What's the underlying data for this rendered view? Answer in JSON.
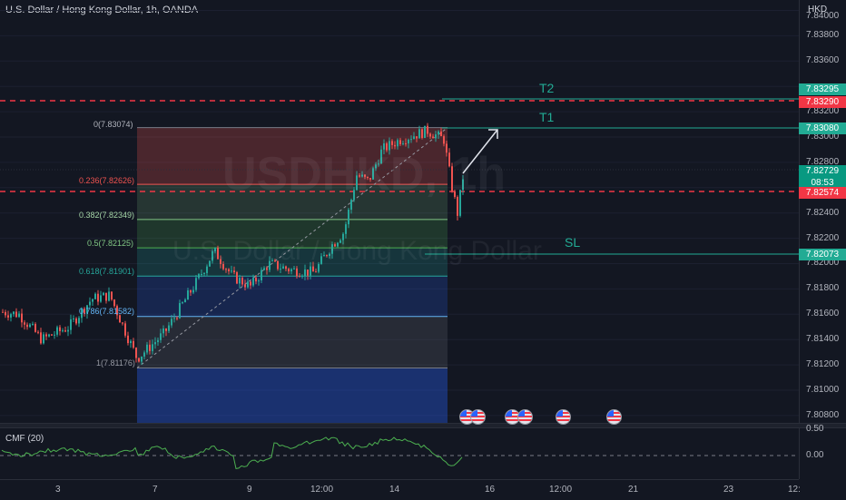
{
  "header": {
    "title": "U.S. Dollar / Hong Kong Dollar, 1h, OANDA"
  },
  "watermark": {
    "symbol": "USDHKD, 1h",
    "name": "U.S. Dollar / Hong Kong Dollar"
  },
  "price_axis": {
    "currency": "HKD",
    "labels": [
      "7.84000",
      "7.83800",
      "7.83600",
      "7.83200",
      "7.83000",
      "7.82800",
      "7.82400",
      "7.82200",
      "7.82000",
      "7.81800",
      "7.81600",
      "7.81400",
      "7.81200",
      "7.81000",
      "7.80800"
    ],
    "tags": {
      "t2": "7.83295",
      "upper_red": "7.83290",
      "t1": "7.83080",
      "last_price": "7.82729",
      "countdown": "08:53",
      "lower_red": "7.82574",
      "sl": "7.82073"
    }
  },
  "time_axis": {
    "labels": [
      "3",
      "7",
      "9",
      "12:00",
      "14",
      "16",
      "12:00",
      "21",
      "23",
      "12:"
    ]
  },
  "fibonacci": {
    "levels": [
      {
        "label": "0(7.83074)"
      },
      {
        "label": "0.236(7.82626)"
      },
      {
        "label": "0.382(7.82349)"
      },
      {
        "label": "0.5(7.82125)"
      },
      {
        "label": "0.618(7.81901)"
      },
      {
        "label": "0.786(7.81582)"
      },
      {
        "label": "1(7.81176)"
      }
    ]
  },
  "targets": {
    "t2": "T2",
    "t1": "T1",
    "sl": "SL"
  },
  "indicator": {
    "label": "CMF (20)",
    "axis_labels": [
      "0.50",
      "0.00"
    ]
  },
  "colors": {
    "background": "#131722",
    "up": "#26a69a",
    "down": "#ef5350",
    "target_line": "#22ab94",
    "stop_line": "#f23645",
    "cmf": "#4caf50"
  },
  "event_icons": [
    "us-flag",
    "us-flag",
    "us-flag",
    "us-flag",
    "us-flag",
    "us-flag"
  ]
}
